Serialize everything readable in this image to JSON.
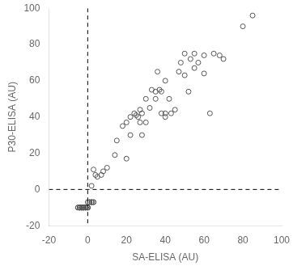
{
  "chart_data": {
    "type": "scatter",
    "xlabel": "SA-ELISA (AU)",
    "ylabel": "P30-ELISA (AU)",
    "x": [
      -5,
      -5,
      -4,
      -4,
      -4,
      -4,
      -4,
      -3,
      -3,
      -3,
      -3,
      -3,
      -3,
      -2,
      -2,
      -2,
      -2,
      -2,
      -1,
      -1,
      -1,
      -1,
      -1,
      0,
      0,
      0,
      0,
      0,
      1,
      1,
      2,
      2,
      2,
      3,
      3,
      2,
      4,
      7,
      3,
      5,
      8,
      10,
      14,
      20,
      15,
      18,
      20,
      22,
      22,
      24,
      25,
      26,
      27,
      27,
      28,
      28,
      30,
      30,
      32,
      33,
      35,
      35,
      36,
      37,
      38,
      38,
      40,
      40,
      40,
      42,
      43,
      45,
      47,
      48,
      50,
      50,
      52,
      53,
      55,
      55,
      57,
      60,
      60,
      65,
      68,
      70,
      63,
      80,
      85
    ],
    "values": [
      -10,
      -10,
      -10,
      -10,
      -10,
      -10,
      -10,
      -10,
      -10,
      -10,
      -10,
      -10,
      -10,
      -10,
      -10,
      -10,
      -10,
      -10,
      -10,
      -10,
      -10,
      -10,
      -10,
      -10,
      -10,
      -10,
      -10,
      -7,
      -7,
      -7,
      -7,
      -7,
      -7,
      -7,
      -7,
      2,
      8,
      8,
      11,
      7,
      10,
      12,
      19,
      17,
      27,
      35,
      37,
      30,
      40,
      42,
      41,
      40,
      37,
      44,
      42,
      30,
      50,
      37,
      45,
      55,
      50,
      54,
      65,
      55,
      42,
      54,
      40,
      42,
      60,
      50,
      42,
      44,
      65,
      70,
      75,
      63,
      54,
      72,
      67,
      75,
      70,
      64,
      74,
      75,
      74,
      72,
      42,
      90,
      96
    ],
    "color": "#555555",
    "marker": "circle",
    "xlim": [
      -20,
      100
    ],
    "ylim": [
      -20,
      100
    ],
    "xticks": [
      -20,
      0,
      20,
      40,
      60,
      80,
      100
    ],
    "yticks": [
      -20,
      0,
      20,
      40,
      60,
      80,
      100
    ],
    "vlines": [
      0
    ],
    "hlines": [
      0
    ],
    "grid": false
  }
}
